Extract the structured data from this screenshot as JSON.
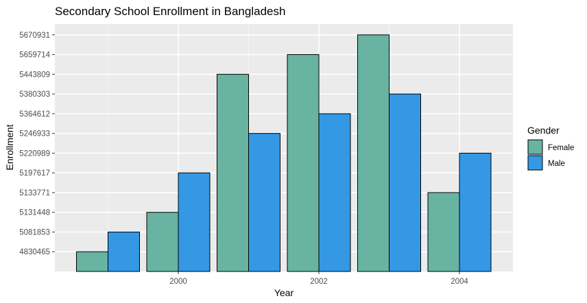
{
  "chart_data": {
    "type": "bar",
    "title": "Secondary School Enrollment in Bangladesh",
    "xlabel": "Year",
    "ylabel": "Enrollment",
    "x_tick_labels": [
      "2000",
      "2002",
      "2004"
    ],
    "y_tick_labels": [
      "4830465",
      "5081853",
      "5131448",
      "5133771",
      "5197617",
      "5220989",
      "5246933",
      "5364612",
      "5380303",
      "5443809",
      "5659714",
      "5670931"
    ],
    "y_axis_note": "discrete axis: each distinct value is one equally spaced level",
    "legend": {
      "title": "Gender",
      "position": "right"
    },
    "series": [
      {
        "name": "Female",
        "color": "#69b3a2"
      },
      {
        "name": "Male",
        "color": "#3498e5"
      }
    ],
    "bars": [
      {
        "year": 1999,
        "gender": "Female",
        "value": 4830465
      },
      {
        "year": 1999,
        "gender": "Male",
        "value": 5081853
      },
      {
        "year": 2000,
        "gender": "Female",
        "value": 5131448
      },
      {
        "year": 2000,
        "gender": "Male",
        "value": 5197617
      },
      {
        "year": 2001,
        "gender": "Male",
        "value": 5246933
      },
      {
        "year": 2001,
        "gender": "Female",
        "value": 5443809
      },
      {
        "year": 2002,
        "gender": "Male",
        "value": 5364612
      },
      {
        "year": 2002,
        "gender": "Female",
        "value": 5659714
      },
      {
        "year": 2003,
        "gender": "Male",
        "value": 5380303
      },
      {
        "year": 2003,
        "gender": "Female",
        "value": 5670931
      },
      {
        "year": 2004,
        "gender": "Female",
        "value": 5133771
      },
      {
        "year": 2004,
        "gender": "Male",
        "value": 5220989
      }
    ],
    "grid": true,
    "panel_background": "#ebebeb"
  }
}
